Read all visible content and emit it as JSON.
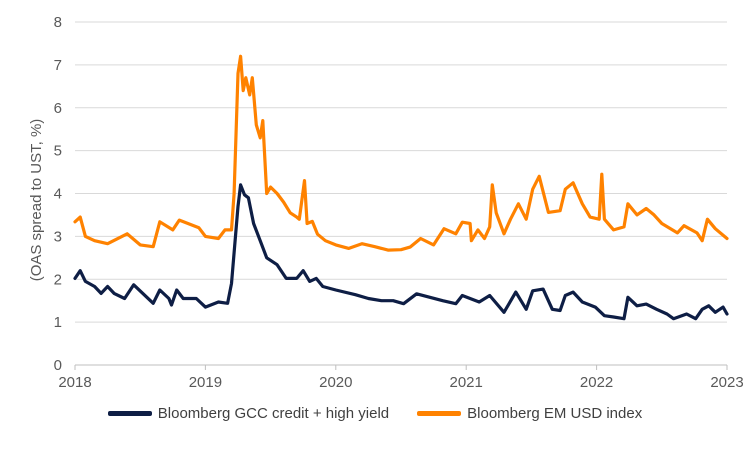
{
  "chart_data": {
    "type": "line",
    "title": "",
    "xlabel": "",
    "ylabel": "(OAS spread to UST, %)",
    "xlim": [
      2018,
      2023
    ],
    "ylim": [
      0,
      8
    ],
    "xticks": [
      "2018",
      "2019",
      "2020",
      "2021",
      "2022",
      "2023"
    ],
    "yticks": [
      "0",
      "1",
      "2",
      "3",
      "4",
      "5",
      "6",
      "7",
      "8"
    ],
    "grid": "horizontal",
    "legend": "bottom",
    "series": [
      {
        "name": "Bloomberg GCC credit + high yield",
        "color": "#0e1e45",
        "x": [
          2018.0,
          2018.04,
          2018.08,
          2018.15,
          2018.2,
          2018.25,
          2018.3,
          2018.38,
          2018.45,
          2018.52,
          2018.6,
          2018.65,
          2018.72,
          2018.74,
          2018.78,
          2018.83,
          2018.93,
          2019.0,
          2019.1,
          2019.17,
          2019.2,
          2019.25,
          2019.27,
          2019.3,
          2019.33,
          2019.37,
          2019.42,
          2019.47,
          2019.55,
          2019.62,
          2019.7,
          2019.75,
          2019.8,
          2019.85,
          2019.9,
          2020.0,
          2020.15,
          2020.25,
          2020.35,
          2020.44,
          2020.52,
          2020.62,
          2020.82,
          2020.92,
          2020.97,
          2021.1,
          2021.18,
          2021.29,
          2021.38,
          2021.46,
          2021.51,
          2021.59,
          2021.66,
          2021.72,
          2021.76,
          2021.82,
          2021.89,
          2021.99,
          2022.06,
          2022.13,
          2022.21,
          2022.24,
          2022.31,
          2022.38,
          2022.46,
          2022.54,
          2022.59,
          2022.69,
          2022.76,
          2022.81,
          2022.86,
          2022.91,
          2022.97,
          2023.0
        ],
        "y": [
          2.02,
          2.2,
          1.95,
          1.83,
          1.67,
          1.83,
          1.67,
          1.55,
          1.87,
          1.67,
          1.44,
          1.75,
          1.55,
          1.4,
          1.75,
          1.55,
          1.55,
          1.35,
          1.47,
          1.44,
          1.9,
          3.7,
          4.2,
          3.97,
          3.9,
          3.3,
          2.9,
          2.5,
          2.34,
          2.02,
          2.02,
          2.2,
          1.95,
          2.02,
          1.83,
          1.75,
          1.64,
          1.55,
          1.5,
          1.5,
          1.43,
          1.66,
          1.5,
          1.43,
          1.62,
          1.47,
          1.62,
          1.23,
          1.7,
          1.3,
          1.73,
          1.77,
          1.3,
          1.27,
          1.62,
          1.7,
          1.47,
          1.35,
          1.15,
          1.12,
          1.08,
          1.58,
          1.38,
          1.42,
          1.3,
          1.19,
          1.08,
          1.19,
          1.08,
          1.3,
          1.38,
          1.23,
          1.35,
          1.19
        ]
      },
      {
        "name": "Bloomberg EM USD index",
        "color": "#ff8200",
        "x": [
          2018.0,
          2018.04,
          2018.08,
          2018.15,
          2018.25,
          2018.4,
          2018.5,
          2018.6,
          2018.65,
          2018.75,
          2018.8,
          2018.95,
          2019.0,
          2019.1,
          2019.15,
          2019.2,
          2019.22,
          2019.25,
          2019.27,
          2019.29,
          2019.31,
          2019.34,
          2019.36,
          2019.39,
          2019.42,
          2019.44,
          2019.47,
          2019.5,
          2019.55,
          2019.6,
          2019.65,
          2019.7,
          2019.72,
          2019.74,
          2019.76,
          2019.78,
          2019.82,
          2019.86,
          2019.92,
          2020.0,
          2020.1,
          2020.2,
          2020.3,
          2020.4,
          2020.5,
          2020.57,
          2020.65,
          2020.75,
          2020.83,
          2020.92,
          2020.97,
          2021.03,
          2021.04,
          2021.09,
          2021.14,
          2021.18,
          2021.2,
          2021.23,
          2021.29,
          2021.34,
          2021.4,
          2021.46,
          2021.51,
          2021.56,
          2021.63,
          2021.72,
          2021.76,
          2021.82,
          2021.89,
          2021.95,
          2022.02,
          2022.04,
          2022.06,
          2022.13,
          2022.21,
          2022.24,
          2022.31,
          2022.38,
          2022.44,
          2022.5,
          2022.62,
          2022.67,
          2022.77,
          2022.81,
          2022.85,
          2022.91,
          2023.0
        ],
        "y": [
          3.34,
          3.45,
          3.0,
          2.9,
          2.83,
          3.06,
          2.8,
          2.76,
          3.34,
          3.15,
          3.38,
          3.2,
          3.0,
          2.95,
          3.15,
          3.15,
          4.0,
          6.8,
          7.2,
          6.4,
          6.7,
          6.3,
          6.7,
          5.6,
          5.3,
          5.7,
          4.0,
          4.15,
          4.0,
          3.8,
          3.55,
          3.45,
          3.4,
          3.85,
          4.3,
          3.3,
          3.35,
          3.05,
          2.9,
          2.8,
          2.72,
          2.83,
          2.76,
          2.68,
          2.69,
          2.75,
          2.95,
          2.8,
          3.18,
          3.06,
          3.33,
          3.3,
          2.9,
          3.15,
          2.95,
          3.22,
          4.2,
          3.55,
          3.06,
          3.4,
          3.76,
          3.4,
          4.1,
          4.4,
          3.56,
          3.6,
          4.1,
          4.25,
          3.76,
          3.45,
          3.4,
          4.45,
          3.4,
          3.15,
          3.22,
          3.76,
          3.5,
          3.65,
          3.5,
          3.3,
          3.08,
          3.25,
          3.08,
          2.9,
          3.4,
          3.18,
          2.95
        ]
      }
    ]
  }
}
